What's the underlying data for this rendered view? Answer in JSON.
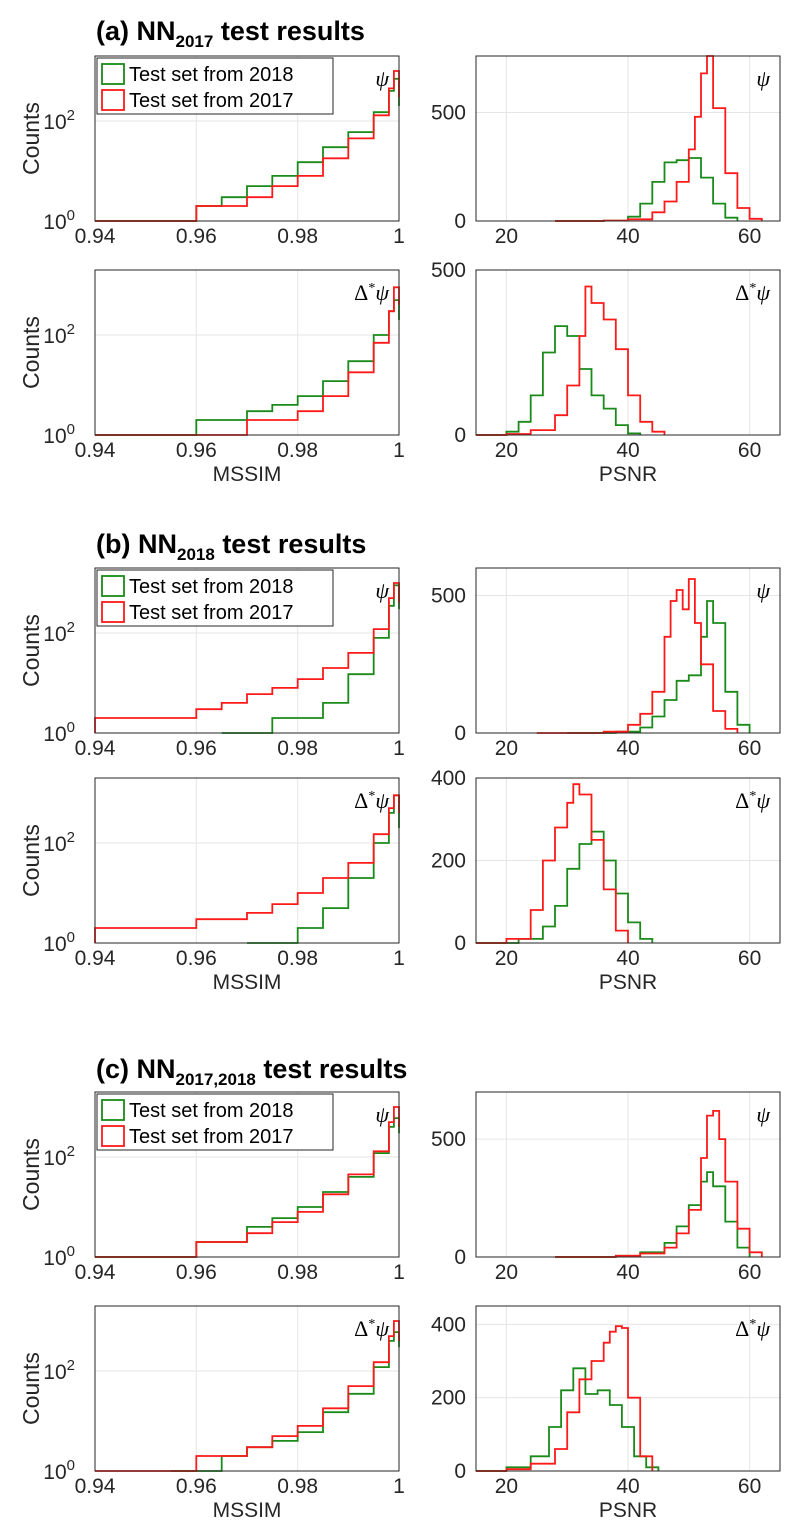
{
  "figure": {
    "colors": {
      "s2018": "#1a8a1a",
      "s2017": "#ff1a1a",
      "axis": "#262626",
      "grid": "#e6e6e6"
    },
    "legend": {
      "s2018": "Test set from 2018",
      "s2017": "Test set from 2017"
    },
    "labels": {
      "counts": "Counts",
      "mssim": "MSSIM",
      "psnr": "PSNR",
      "psi": "ψ",
      "delta": "Δ",
      "star": "*"
    },
    "panels": [
      {
        "id": "a",
        "title_prefix": "(a) NN",
        "title_sub": "2017",
        "title_suffix": " test results"
      },
      {
        "id": "b",
        "title_prefix": "(b) NN",
        "title_sub": "2018",
        "title_suffix": " test results"
      },
      {
        "id": "c",
        "title_prefix": "(c) NN",
        "title_sub": "2017,2018",
        "title_suffix": " test results"
      }
    ]
  },
  "chart_data": [
    {
      "panel": "a",
      "type": "line",
      "kind": "mssim",
      "tag": "psi",
      "xlim": [
        0.94,
        1.0
      ],
      "xticks": [
        "0.94",
        "0.96",
        "0.98",
        "1"
      ],
      "yscale": "log",
      "ylim": [
        1,
        2000
      ],
      "ylabel": "Counts",
      "xlabel": "",
      "series": [
        {
          "name": "Test set from 2018",
          "x": [
            0.94,
            0.95,
            0.96,
            0.965,
            0.97,
            0.975,
            0.98,
            0.985,
            0.99,
            0.995,
            0.998,
            0.999,
            1.0
          ],
          "values": [
            1,
            1,
            2,
            3,
            5,
            8,
            15,
            30,
            60,
            150,
            400,
            700,
            200
          ]
        },
        {
          "name": "Test set from 2017",
          "x": [
            0.94,
            0.95,
            0.96,
            0.965,
            0.97,
            0.975,
            0.98,
            0.985,
            0.99,
            0.995,
            0.998,
            0.999,
            1.0
          ],
          "values": [
            1,
            1,
            2,
            2,
            3,
            5,
            8,
            18,
            45,
            130,
            450,
            1000,
            300
          ]
        }
      ]
    },
    {
      "panel": "a",
      "type": "line",
      "kind": "psnr",
      "tag": "psi",
      "xlim": [
        15,
        65
      ],
      "xticks": [
        "20",
        "40",
        "60"
      ],
      "yscale": "linear",
      "ylim": [
        0,
        760
      ],
      "yticks": [
        "0",
        "500"
      ],
      "ylabel": "",
      "xlabel": "",
      "series": [
        {
          "name": "Test set from 2018",
          "x": [
            28,
            36,
            40,
            42,
            44,
            46,
            48,
            50,
            52,
            54,
            56,
            58
          ],
          "values": [
            0,
            2,
            20,
            80,
            180,
            270,
            280,
            290,
            200,
            80,
            15,
            0
          ]
        },
        {
          "name": "Test set from 2017",
          "x": [
            28,
            36,
            40,
            44,
            46,
            48,
            50,
            51,
            52,
            53,
            54,
            56,
            58,
            60,
            62
          ],
          "values": [
            0,
            2,
            8,
            40,
            90,
            180,
            330,
            480,
            680,
            760,
            520,
            220,
            60,
            10,
            0
          ]
        }
      ]
    },
    {
      "panel": "a",
      "type": "line",
      "kind": "mssim",
      "tag": "delta",
      "xlim": [
        0.94,
        1.0
      ],
      "xticks": [
        "0.94",
        "0.96",
        "0.98",
        "1"
      ],
      "yscale": "log",
      "ylim": [
        1,
        2000
      ],
      "ylabel": "Counts",
      "xlabel": "MSSIM",
      "series": [
        {
          "name": "Test set from 2018",
          "x": [
            0.94,
            0.95,
            0.96,
            0.97,
            0.975,
            0.98,
            0.985,
            0.99,
            0.995,
            0.998,
            0.999,
            1.0
          ],
          "values": [
            1,
            1,
            2,
            3,
            4,
            6,
            12,
            30,
            100,
            300,
            500,
            200
          ]
        },
        {
          "name": "Test set from 2017",
          "x": [
            0.94,
            0.95,
            0.96,
            0.97,
            0.975,
            0.98,
            0.985,
            0.99,
            0.995,
            0.998,
            0.999,
            1.0
          ],
          "values": [
            1,
            1,
            1,
            2,
            2,
            3,
            6,
            18,
            70,
            300,
            900,
            400
          ]
        }
      ]
    },
    {
      "panel": "a",
      "type": "line",
      "kind": "psnr",
      "tag": "delta",
      "xlim": [
        15,
        65
      ],
      "xticks": [
        "20",
        "40",
        "60"
      ],
      "yscale": "linear",
      "ylim": [
        0,
        500
      ],
      "yticks": [
        "0",
        "500"
      ],
      "ylabel": "",
      "xlabel": "PSNR",
      "series": [
        {
          "name": "Test set from 2018",
          "x": [
            15,
            20,
            22,
            24,
            26,
            28,
            30,
            32,
            34,
            36,
            38,
            40,
            42
          ],
          "values": [
            0,
            10,
            40,
            120,
            250,
            330,
            300,
            200,
            120,
            80,
            30,
            5,
            0
          ]
        },
        {
          "name": "Test set from 2017",
          "x": [
            15,
            20,
            24,
            28,
            30,
            32,
            33,
            34,
            36,
            38,
            40,
            42,
            44,
            46
          ],
          "values": [
            0,
            3,
            15,
            60,
            150,
            300,
            450,
            400,
            350,
            260,
            120,
            40,
            10,
            0
          ]
        }
      ]
    },
    {
      "panel": "b",
      "type": "line",
      "kind": "mssim",
      "tag": "psi",
      "xlim": [
        0.94,
        1.0
      ],
      "xticks": [
        "0.94",
        "0.96",
        "0.98",
        "1"
      ],
      "yscale": "log",
      "ylim": [
        1,
        2000
      ],
      "ylabel": "Counts",
      "xlabel": "",
      "series": [
        {
          "name": "Test set from 2018",
          "x": [
            0.965,
            0.97,
            0.975,
            0.98,
            0.985,
            0.99,
            0.995,
            0.998,
            0.999,
            1.0
          ],
          "values": [
            1,
            1,
            2,
            2,
            4,
            15,
            80,
            350,
            900,
            300
          ]
        },
        {
          "name": "Test set from 2017",
          "x": [
            0.94,
            0.95,
            0.96,
            0.965,
            0.97,
            0.975,
            0.98,
            0.985,
            0.99,
            0.995,
            0.998,
            0.999,
            1.0
          ],
          "values": [
            2,
            2,
            3,
            4,
            6,
            8,
            12,
            20,
            40,
            120,
            500,
            1000,
            400
          ]
        }
      ]
    },
    {
      "panel": "b",
      "type": "line",
      "kind": "psnr",
      "tag": "psi",
      "xlim": [
        15,
        65
      ],
      "xticks": [
        "20",
        "40",
        "60"
      ],
      "yscale": "linear",
      "ylim": [
        0,
        600
      ],
      "yticks": [
        "0",
        "500"
      ],
      "ylabel": "",
      "xlabel": "",
      "series": [
        {
          "name": "Test set from 2018",
          "x": [
            30,
            38,
            42,
            44,
            46,
            48,
            50,
            52,
            53,
            54,
            56,
            58,
            60
          ],
          "values": [
            0,
            5,
            20,
            60,
            120,
            190,
            210,
            350,
            480,
            400,
            150,
            30,
            0
          ]
        },
        {
          "name": "Test set from 2017",
          "x": [
            25,
            36,
            40,
            42,
            44,
            46,
            47,
            48,
            49,
            50,
            51,
            52,
            54,
            56,
            58
          ],
          "values": [
            0,
            5,
            30,
            70,
            150,
            350,
            480,
            520,
            450,
            560,
            400,
            250,
            80,
            15,
            0
          ]
        }
      ]
    },
    {
      "panel": "b",
      "type": "line",
      "kind": "mssim",
      "tag": "delta",
      "xlim": [
        0.94,
        1.0
      ],
      "xticks": [
        "0.94",
        "0.96",
        "0.98",
        "1"
      ],
      "yscale": "log",
      "ylim": [
        1,
        2000
      ],
      "ylabel": "Counts",
      "xlabel": "MSSIM",
      "series": [
        {
          "name": "Test set from 2018",
          "x": [
            0.97,
            0.975,
            0.98,
            0.985,
            0.99,
            0.995,
            0.998,
            0.999,
            1.0
          ],
          "values": [
            1,
            1,
            2,
            5,
            20,
            100,
            400,
            900,
            200
          ]
        },
        {
          "name": "Test set from 2017",
          "x": [
            0.94,
            0.95,
            0.96,
            0.965,
            0.97,
            0.975,
            0.98,
            0.985,
            0.99,
            0.995,
            0.998,
            0.999,
            1.0
          ],
          "values": [
            2,
            2,
            3,
            3,
            4,
            6,
            10,
            20,
            40,
            150,
            500,
            900,
            400
          ]
        }
      ]
    },
    {
      "panel": "b",
      "type": "line",
      "kind": "psnr",
      "tag": "delta",
      "xlim": [
        15,
        65
      ],
      "xticks": [
        "20",
        "40",
        "60"
      ],
      "yscale": "linear",
      "ylim": [
        0,
        400
      ],
      "yticks": [
        "0",
        "200",
        "400"
      ],
      "ylabel": "",
      "xlabel": "PSNR",
      "series": [
        {
          "name": "Test set from 2018",
          "x": [
            15,
            22,
            26,
            28,
            30,
            32,
            34,
            36,
            38,
            40,
            42,
            44
          ],
          "values": [
            0,
            10,
            40,
            90,
            180,
            240,
            270,
            200,
            120,
            50,
            10,
            0
          ]
        },
        {
          "name": "Test set from 2017",
          "x": [
            15,
            20,
            24,
            26,
            28,
            30,
            31,
            32,
            34,
            36,
            38,
            40
          ],
          "values": [
            0,
            10,
            80,
            200,
            280,
            340,
            385,
            360,
            250,
            130,
            30,
            0
          ]
        }
      ]
    },
    {
      "panel": "c",
      "type": "line",
      "kind": "mssim",
      "tag": "psi",
      "xlim": [
        0.94,
        1.0
      ],
      "xticks": [
        "0.94",
        "0.96",
        "0.98",
        "1"
      ],
      "yscale": "log",
      "ylim": [
        1,
        2000
      ],
      "ylabel": "Counts",
      "xlabel": "",
      "series": [
        {
          "name": "Test set from 2018",
          "x": [
            0.94,
            0.95,
            0.96,
            0.97,
            0.975,
            0.98,
            0.985,
            0.99,
            0.995,
            0.998,
            0.999,
            1.0
          ],
          "values": [
            1,
            1,
            2,
            4,
            6,
            10,
            20,
            40,
            120,
            400,
            600,
            300
          ]
        },
        {
          "name": "Test set from 2017",
          "x": [
            0.94,
            0.95,
            0.96,
            0.97,
            0.975,
            0.98,
            0.985,
            0.99,
            0.995,
            0.998,
            0.999,
            1.0
          ],
          "values": [
            1,
            1,
            2,
            3,
            5,
            8,
            18,
            45,
            130,
            500,
            1000,
            400
          ]
        }
      ]
    },
    {
      "panel": "c",
      "type": "line",
      "kind": "psnr",
      "tag": "psi",
      "xlim": [
        15,
        65
      ],
      "xticks": [
        "20",
        "40",
        "60"
      ],
      "yscale": "linear",
      "ylim": [
        0,
        700
      ],
      "yticks": [
        "0",
        "500"
      ],
      "ylabel": "",
      "xlabel": "",
      "series": [
        {
          "name": "Test set from 2018",
          "x": [
            28,
            38,
            42,
            46,
            48,
            50,
            52,
            53,
            54,
            56,
            58,
            60
          ],
          "values": [
            0,
            5,
            20,
            60,
            130,
            220,
            320,
            360,
            300,
            150,
            40,
            0
          ]
        },
        {
          "name": "Test set from 2017",
          "x": [
            28,
            38,
            42,
            46,
            48,
            50,
            52,
            53,
            54,
            55,
            56,
            58,
            60,
            62
          ],
          "values": [
            0,
            5,
            15,
            40,
            100,
            200,
            420,
            600,
            620,
            500,
            320,
            120,
            20,
            0
          ]
        }
      ]
    },
    {
      "panel": "c",
      "type": "line",
      "kind": "mssim",
      "tag": "delta",
      "xlim": [
        0.94,
        1.0
      ],
      "xticks": [
        "0.94",
        "0.96",
        "0.98",
        "1"
      ],
      "yscale": "log",
      "ylim": [
        1,
        2000
      ],
      "ylabel": "Counts",
      "xlabel": "MSSIM",
      "series": [
        {
          "name": "Test set from 2018",
          "x": [
            0.955,
            0.96,
            0.965,
            0.97,
            0.975,
            0.98,
            0.985,
            0.99,
            0.995,
            0.998,
            0.999,
            1.0
          ],
          "values": [
            1,
            1,
            2,
            3,
            4,
            6,
            15,
            35,
            120,
            400,
            600,
            300
          ]
        },
        {
          "name": "Test set from 2017",
          "x": [
            0.94,
            0.95,
            0.96,
            0.965,
            0.97,
            0.975,
            0.98,
            0.985,
            0.99,
            0.995,
            0.998,
            0.999,
            1.0
          ],
          "values": [
            1,
            1,
            2,
            2,
            3,
            5,
            8,
            18,
            50,
            150,
            500,
            1000,
            400
          ]
        }
      ]
    },
    {
      "panel": "c",
      "type": "line",
      "kind": "psnr",
      "tag": "delta",
      "xlim": [
        15,
        65
      ],
      "xticks": [
        "20",
        "40",
        "60"
      ],
      "yscale": "linear",
      "ylim": [
        0,
        450
      ],
      "yticks": [
        "0",
        "200",
        "400"
      ],
      "ylabel": "",
      "xlabel": "PSNR",
      "series": [
        {
          "name": "Test set from 2018",
          "x": [
            15,
            20,
            24,
            27,
            29,
            31,
            33,
            35,
            37,
            39,
            41,
            43,
            45
          ],
          "values": [
            0,
            10,
            40,
            120,
            220,
            280,
            210,
            220,
            180,
            120,
            40,
            10,
            0
          ]
        },
        {
          "name": "Test set from 2017",
          "x": [
            15,
            20,
            24,
            28,
            30,
            32,
            34,
            36,
            37,
            38,
            39,
            40,
            42,
            44
          ],
          "values": [
            0,
            5,
            20,
            60,
            160,
            250,
            300,
            350,
            380,
            395,
            390,
            200,
            40,
            0
          ]
        }
      ]
    }
  ]
}
